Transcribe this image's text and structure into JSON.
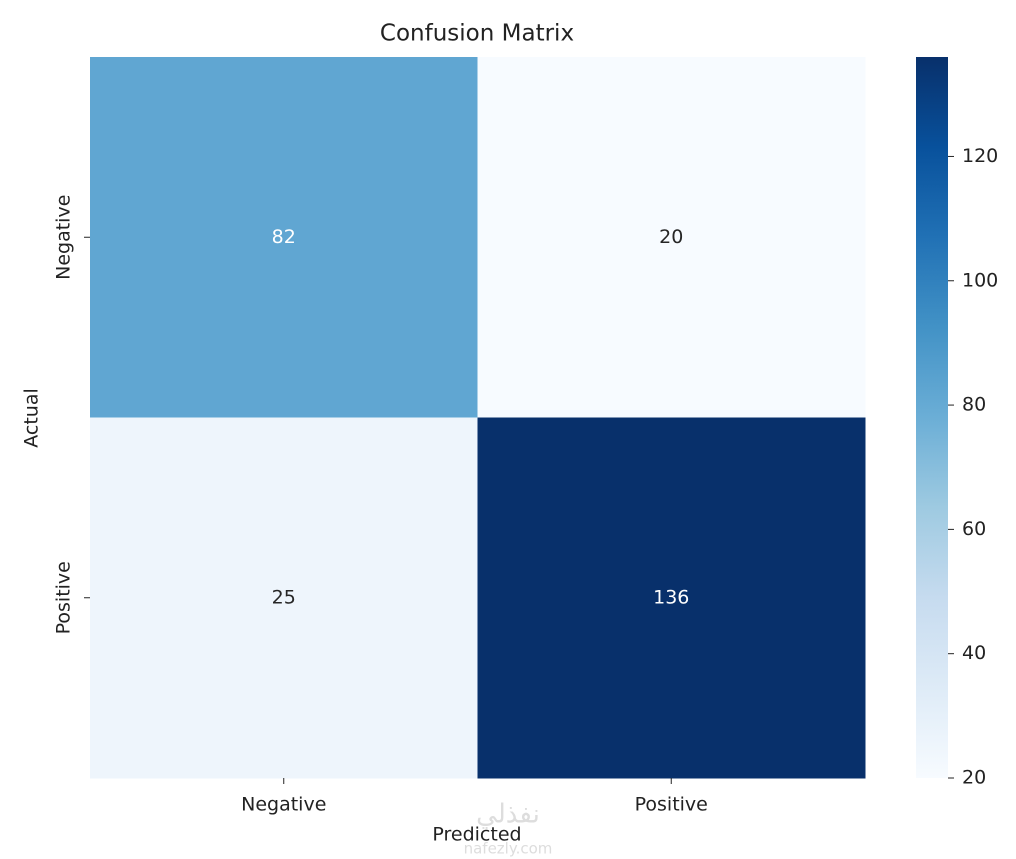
{
  "chart_data": {
    "type": "heatmap",
    "title": "Confusion Matrix",
    "x_label": "Predicted",
    "y_label": "Actual",
    "x_categories": [
      "Negative",
      "Positive"
    ],
    "y_categories": [
      "Negative",
      "Positive"
    ],
    "values": [
      [
        82,
        20
      ],
      [
        25,
        136
      ]
    ],
    "colormap": "Blues",
    "clim": [
      20,
      136
    ],
    "cticks": [
      20,
      40,
      60,
      80,
      100,
      120
    ],
    "watermark": [
      "نفذلي",
      "nafezly.com"
    ]
  }
}
